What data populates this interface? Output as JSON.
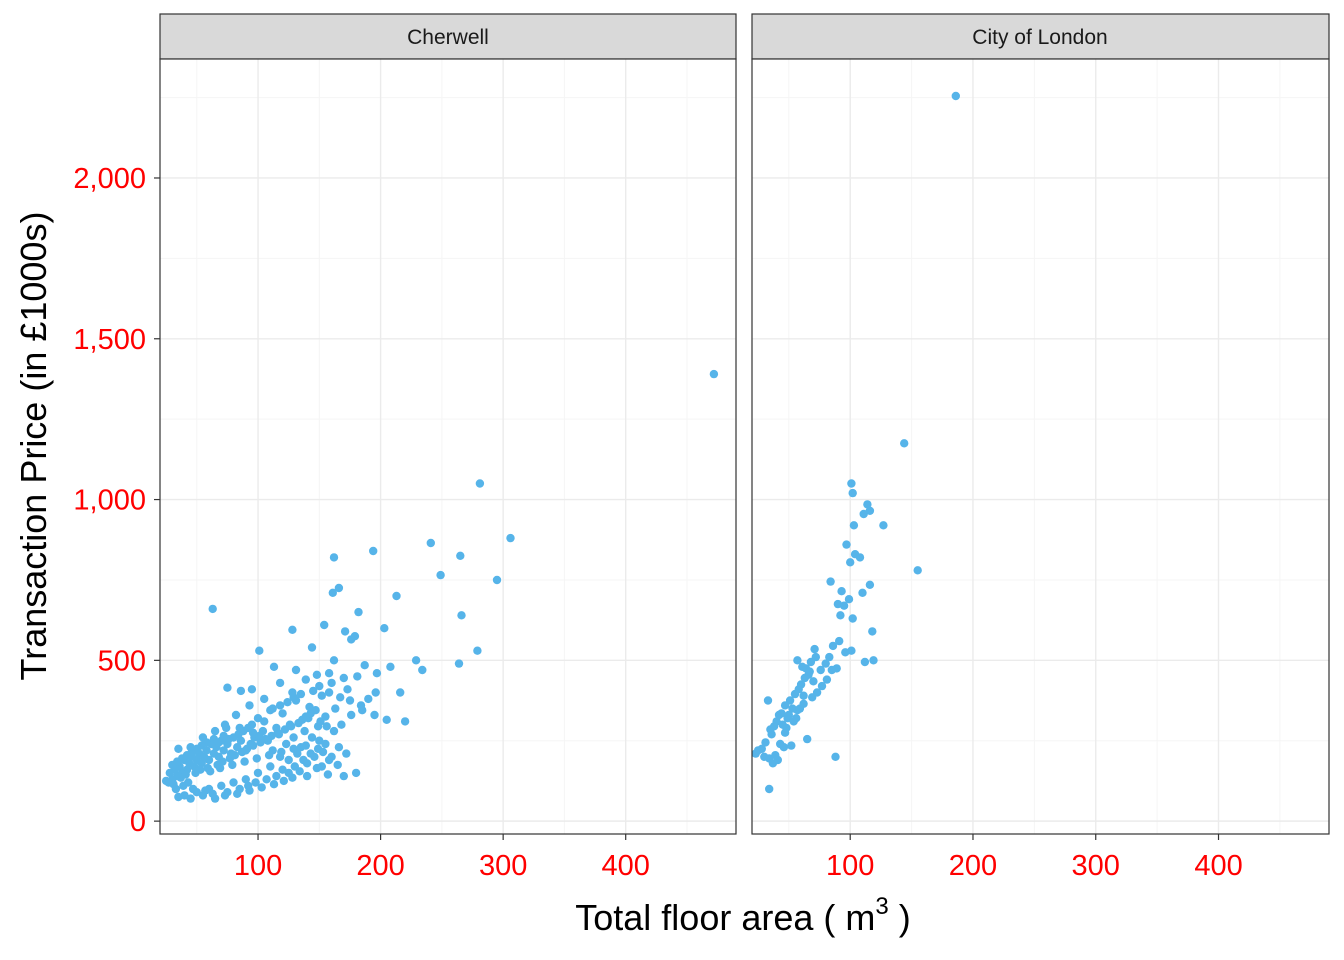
{
  "colors": {
    "point": "#56B4E9",
    "tick_label": "#FF0000",
    "strip_fill": "#D9D9D9",
    "panel_border": "#333333",
    "grid_major": "#EBEBEB",
    "grid_minor": "#F5F5F5"
  },
  "chart_data": {
    "type": "scatter",
    "facets": [
      "Cherwell",
      "City of London"
    ],
    "xlabel": "Total floor area ( m",
    "xlabel_superscript": "3",
    "xlabel_suffix": " )",
    "ylabel": "Transaction Price (in £1000s)",
    "xlim": [
      20,
      490
    ],
    "ylim": [
      -40,
      2370
    ],
    "x_ticks": [
      100,
      200,
      300,
      400
    ],
    "x_tick_labels": [
      "100",
      "200",
      "300",
      "400"
    ],
    "y_ticks": [
      0,
      500,
      1000,
      1500,
      2000
    ],
    "y_tick_labels": [
      "0",
      "500",
      "1,000",
      "1,500",
      "2,000"
    ],
    "grid": true,
    "series": [
      {
        "facet": "Cherwell",
        "points": [
          [
            472,
            1390
          ],
          [
            281,
            1050
          ],
          [
            306,
            880
          ],
          [
            241,
            865
          ],
          [
            194,
            840
          ],
          [
            265,
            825
          ],
          [
            162,
            820
          ],
          [
            295,
            750
          ],
          [
            249,
            765
          ],
          [
            166,
            725
          ],
          [
            161,
            710
          ],
          [
            213,
            700
          ],
          [
            63,
            660
          ],
          [
            182,
            650
          ],
          [
            266,
            640
          ],
          [
            154,
            610
          ],
          [
            171,
            590
          ],
          [
            179,
            575
          ],
          [
            203,
            600
          ],
          [
            128,
            595
          ],
          [
            176,
            565
          ],
          [
            279,
            530
          ],
          [
            101,
            530
          ],
          [
            229,
            500
          ],
          [
            264,
            490
          ],
          [
            144,
            540
          ],
          [
            162,
            500
          ],
          [
            187,
            485
          ],
          [
            234,
            470
          ],
          [
            208,
            480
          ],
          [
            113,
            480
          ],
          [
            131,
            470
          ],
          [
            148,
            455
          ],
          [
            158,
            460
          ],
          [
            118,
            430
          ],
          [
            216,
            400
          ],
          [
            173,
            410
          ],
          [
            190,
            380
          ],
          [
            139,
            440
          ],
          [
            196,
            400
          ],
          [
            75,
            415
          ],
          [
            86,
            405
          ],
          [
            95,
            410
          ],
          [
            152,
            390
          ],
          [
            128,
            400
          ],
          [
            181,
            450
          ],
          [
            197,
            460
          ],
          [
            176,
            330
          ],
          [
            168,
            300
          ],
          [
            155,
            325
          ],
          [
            163,
            350
          ],
          [
            184,
            360
          ],
          [
            131,
            375
          ],
          [
            105,
            380
          ],
          [
            93,
            360
          ],
          [
            110,
            345
          ],
          [
            120,
            335
          ],
          [
            141,
            320
          ],
          [
            149,
            295
          ],
          [
            142,
            355
          ],
          [
            162,
            280
          ],
          [
            82,
            330
          ],
          [
            73,
            300
          ],
          [
            100,
            320
          ],
          [
            126,
            300
          ],
          [
            115,
            290
          ],
          [
            138,
            280
          ],
          [
            144,
            260
          ],
          [
            150,
            250
          ],
          [
            166,
            230
          ],
          [
            172,
            210
          ],
          [
            155,
            240
          ],
          [
            135,
            230
          ],
          [
            129,
            260
          ],
          [
            123,
            240
          ],
          [
            117,
            270
          ],
          [
            108,
            250
          ],
          [
            104,
            280
          ],
          [
            97,
            260
          ],
          [
            94,
            240
          ],
          [
            90,
            220
          ],
          [
            86,
            250
          ],
          [
            83,
            230
          ],
          [
            80,
            260
          ],
          [
            78,
            210
          ],
          [
            75,
            240
          ],
          [
            72,
            220
          ],
          [
            70,
            250
          ],
          [
            68,
            200
          ],
          [
            66,
            230
          ],
          [
            64,
            210
          ],
          [
            62,
            240
          ],
          [
            60,
            190
          ],
          [
            58,
            220
          ],
          [
            56,
            200
          ],
          [
            54,
            180
          ],
          [
            52,
            210
          ],
          [
            50,
            190
          ],
          [
            48,
            170
          ],
          [
            46,
            200
          ],
          [
            44,
            180
          ],
          [
            42,
            160
          ],
          [
            40,
            190
          ],
          [
            38,
            150
          ],
          [
            36,
            170
          ],
          [
            34,
            140
          ],
          [
            32,
            160
          ],
          [
            30,
            130
          ],
          [
            28,
            150
          ],
          [
            27,
            120
          ],
          [
            25,
            125
          ],
          [
            35,
            225
          ],
          [
            45,
            230
          ],
          [
            55,
            260
          ],
          [
            65,
            280
          ],
          [
            74,
            290
          ],
          [
            85,
            290
          ],
          [
            95,
            300
          ],
          [
            105,
            310
          ],
          [
            112,
            220
          ],
          [
            118,
            200
          ],
          [
            125,
            190
          ],
          [
            132,
            210
          ],
          [
            140,
            180
          ],
          [
            146,
            200
          ],
          [
            152,
            170
          ],
          [
            158,
            190
          ],
          [
            170,
            140
          ],
          [
            180,
            150
          ],
          [
            140,
            140
          ],
          [
            125,
            150
          ],
          [
            110,
            170
          ],
          [
            100,
            150
          ],
          [
            90,
            130
          ],
          [
            80,
            120
          ],
          [
            70,
            110
          ],
          [
            60,
            100
          ],
          [
            50,
            90
          ],
          [
            40,
            80
          ],
          [
            35,
            75
          ],
          [
            45,
            70
          ],
          [
            55,
            80
          ],
          [
            65,
            70
          ],
          [
            75,
            90
          ],
          [
            85,
            100
          ],
          [
            92,
            110
          ],
          [
            98,
            120
          ],
          [
            107,
            130
          ],
          [
            115,
            140
          ],
          [
            120,
            160
          ],
          [
            130,
            170
          ],
          [
            137,
            190
          ],
          [
            143,
            210
          ],
          [
            149,
            225
          ],
          [
            153,
            215
          ],
          [
            160,
            200
          ],
          [
            165,
            175
          ],
          [
            157,
            145
          ],
          [
            148,
            165
          ],
          [
            134,
            155
          ],
          [
            128,
            135
          ],
          [
            121,
            125
          ],
          [
            113,
            115
          ],
          [
            103,
            105
          ],
          [
            93,
            95
          ],
          [
            83,
            85
          ],
          [
            73,
            80
          ],
          [
            63,
            85
          ],
          [
            57,
            95
          ],
          [
            47,
            100
          ],
          [
            43,
            120
          ],
          [
            39,
            110
          ],
          [
            33,
            100
          ],
          [
            31,
            115
          ],
          [
            37,
            135
          ],
          [
            41,
            145
          ],
          [
            49,
            150
          ],
          [
            53,
            160
          ],
          [
            59,
            165
          ],
          [
            67,
            175
          ],
          [
            71,
            185
          ],
          [
            77,
            195
          ],
          [
            81,
            205
          ],
          [
            87,
            215
          ],
          [
            91,
            225
          ],
          [
            96,
            235
          ],
          [
            102,
            245
          ],
          [
            106,
            255
          ],
          [
            111,
            265
          ],
          [
            116,
            275
          ],
          [
            122,
            285
          ],
          [
            127,
            295
          ],
          [
            133,
            305
          ],
          [
            136,
            315
          ],
          [
            139,
            325
          ],
          [
            143,
            335
          ],
          [
            147,
            345
          ],
          [
            151,
            310
          ],
          [
            156,
            295
          ],
          [
            61,
            155
          ],
          [
            69,
            165
          ],
          [
            79,
            175
          ],
          [
            89,
            185
          ],
          [
            99,
            195
          ],
          [
            109,
            205
          ],
          [
            119,
            215
          ],
          [
            129,
            225
          ],
          [
            139,
            235
          ],
          [
            84,
            270
          ],
          [
            88,
            280
          ],
          [
            92,
            290
          ],
          [
            96,
            275
          ],
          [
            101,
            265
          ],
          [
            76,
            255
          ],
          [
            72,
            265
          ],
          [
            68,
            245
          ],
          [
            64,
            255
          ],
          [
            58,
            245
          ],
          [
            54,
            235
          ],
          [
            50,
            225
          ],
          [
            46,
            215
          ],
          [
            42,
            205
          ],
          [
            38,
            195
          ],
          [
            34,
            185
          ],
          [
            30,
            175
          ],
          [
            112,
            350
          ],
          [
            118,
            360
          ],
          [
            124,
            370
          ],
          [
            129,
            385
          ],
          [
            135,
            395
          ],
          [
            145,
            405
          ],
          [
            150,
            420
          ],
          [
            160,
            430
          ],
          [
            170,
            445
          ],
          [
            158,
            400
          ],
          [
            167,
            385
          ],
          [
            175,
            375
          ],
          [
            185,
            345
          ],
          [
            195,
            330
          ],
          [
            205,
            315
          ],
          [
            220,
            310
          ]
        ]
      },
      {
        "facet": "City of London",
        "points": [
          [
            186,
            2255
          ],
          [
            144,
            1175
          ],
          [
            101,
            1050
          ],
          [
            102,
            1020
          ],
          [
            114,
            985
          ],
          [
            116,
            965
          ],
          [
            111,
            955
          ],
          [
            103,
            920
          ],
          [
            127,
            920
          ],
          [
            97,
            860
          ],
          [
            104,
            830
          ],
          [
            108,
            820
          ],
          [
            100,
            805
          ],
          [
            116,
            735
          ],
          [
            84,
            745
          ],
          [
            155,
            780
          ],
          [
            93,
            715
          ],
          [
            110,
            710
          ],
          [
            99,
            690
          ],
          [
            90,
            675
          ],
          [
            95,
            670
          ],
          [
            92,
            640
          ],
          [
            102,
            630
          ],
          [
            118,
            590
          ],
          [
            91,
            560
          ],
          [
            86,
            545
          ],
          [
            101,
            530
          ],
          [
            96,
            525
          ],
          [
            83,
            510
          ],
          [
            71,
            535
          ],
          [
            72,
            510
          ],
          [
            68,
            495
          ],
          [
            80,
            490
          ],
          [
            64,
            475
          ],
          [
            119,
            500
          ],
          [
            112,
            495
          ],
          [
            57,
            500
          ],
          [
            61,
            480
          ],
          [
            67,
            465
          ],
          [
            76,
            470
          ],
          [
            85,
            470
          ],
          [
            89,
            475
          ],
          [
            66,
            455
          ],
          [
            63,
            445
          ],
          [
            70,
            435
          ],
          [
            60,
            425
          ],
          [
            58,
            410
          ],
          [
            55,
            395
          ],
          [
            62,
            390
          ],
          [
            51,
            375
          ],
          [
            47,
            360
          ],
          [
            53,
            350
          ],
          [
            57,
            345
          ],
          [
            44,
            335
          ],
          [
            49,
            320
          ],
          [
            40,
            310
          ],
          [
            45,
            300
          ],
          [
            50,
            330
          ],
          [
            42,
            330
          ],
          [
            38,
            295
          ],
          [
            35,
            285
          ],
          [
            33,
            375
          ],
          [
            36,
            270
          ],
          [
            48,
            290
          ],
          [
            31,
            245
          ],
          [
            28,
            225
          ],
          [
            25,
            220
          ],
          [
            23,
            210
          ],
          [
            30,
            200
          ],
          [
            34,
            195
          ],
          [
            39,
            205
          ],
          [
            43,
            240
          ],
          [
            46,
            230
          ],
          [
            52,
            235
          ],
          [
            37,
            180
          ],
          [
            41,
            190
          ],
          [
            88,
            200
          ],
          [
            65,
            255
          ],
          [
            34,
            100
          ],
          [
            56,
            320
          ],
          [
            59,
            350
          ],
          [
            62,
            365
          ],
          [
            69,
            385
          ],
          [
            73,
            400
          ],
          [
            77,
            420
          ],
          [
            81,
            440
          ],
          [
            54,
            310
          ],
          [
            47,
            275
          ]
        ]
      }
    ]
  }
}
